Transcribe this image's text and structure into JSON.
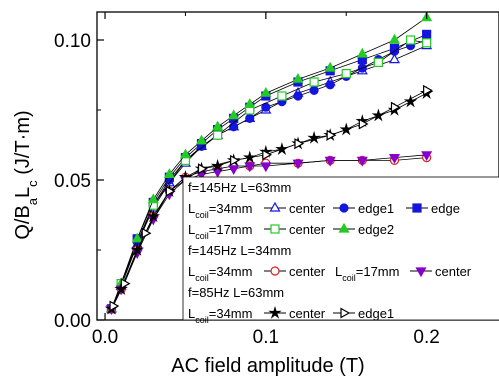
{
  "chart_data": {
    "type": "scatter",
    "xlabel": "AC field amplitude (T)",
    "ylabel": {
      "main": "Q/B",
      "sub_a": "a",
      "mid": "L",
      "sub_b": "c",
      "unit": " (J/T·m)"
    },
    "xlim": [
      -0.005,
      0.245
    ],
    "ylim": [
      0.0,
      0.11
    ],
    "xticks": [
      {
        "v": 0.0,
        "label": "0.0"
      },
      {
        "v": 0.1,
        "label": "0.1"
      },
      {
        "v": 0.2,
        "label": "0.2"
      }
    ],
    "yticks": [
      {
        "v": 0.0,
        "label": "0.00"
      },
      {
        "v": 0.05,
        "label": "0.05"
      },
      {
        "v": 0.1,
        "label": "0.10"
      }
    ],
    "legend_placement": "bottom-right",
    "legend": {
      "group1_title": "f=145Hz L=63mm",
      "group2_title": "f=145Hz L=34mm",
      "group3_title": "f=85Hz L=63mm",
      "lcoil_L": "L",
      "lcoil_sub": "coil",
      "eq34": "=34mm",
      "eq17": "=17mm",
      "center": "center",
      "edge1": "edge1",
      "edge": "edge",
      "edge2": "edge2"
    },
    "series": [
      {
        "key": "s145_63_34_center",
        "color": "#1515e0",
        "marker": "triangle-open",
        "x": [
          0.004,
          0.01,
          0.02,
          0.03,
          0.04,
          0.05,
          0.06,
          0.07,
          0.08,
          0.09,
          0.1,
          0.12,
          0.14,
          0.16,
          0.18,
          0.2
        ],
        "y": [
          0.004,
          0.012,
          0.027,
          0.04,
          0.049,
          0.056,
          0.062,
          0.066,
          0.069,
          0.072,
          0.075,
          0.081,
          0.085,
          0.089,
          0.093,
          0.098
        ]
      },
      {
        "key": "s145_63_34_edge1",
        "color": "#1515e0",
        "marker": "circle-filled",
        "x": [
          0.004,
          0.01,
          0.02,
          0.03,
          0.04,
          0.05,
          0.06,
          0.07,
          0.08,
          0.09,
          0.1,
          0.11,
          0.12,
          0.13,
          0.14,
          0.15,
          0.16,
          0.17,
          0.18,
          0.19,
          0.2
        ],
        "y": [
          0.004,
          0.013,
          0.028,
          0.041,
          0.05,
          0.057,
          0.062,
          0.066,
          0.069,
          0.072,
          0.076,
          0.078,
          0.08,
          0.082,
          0.084,
          0.087,
          0.09,
          0.093,
          0.096,
          0.098,
          0.1
        ]
      },
      {
        "key": "s145_63_34_edge",
        "color": "#1515e0",
        "marker": "square-filled",
        "x": [
          0.004,
          0.01,
          0.02,
          0.03,
          0.04,
          0.05,
          0.06,
          0.07,
          0.08,
          0.09,
          0.1,
          0.12,
          0.14,
          0.16,
          0.18,
          0.2
        ],
        "y": [
          0.004,
          0.013,
          0.029,
          0.042,
          0.051,
          0.058,
          0.063,
          0.068,
          0.072,
          0.076,
          0.08,
          0.085,
          0.089,
          0.093,
          0.097,
          0.102
        ]
      },
      {
        "key": "s145_63_17_center",
        "color": "#22cc22",
        "marker": "square-open",
        "x": [
          0.01,
          0.03,
          0.05,
          0.07,
          0.09,
          0.11,
          0.13,
          0.15,
          0.17,
          0.19,
          0.2
        ],
        "y": [
          0.013,
          0.041,
          0.057,
          0.066,
          0.075,
          0.08,
          0.085,
          0.088,
          0.092,
          0.1,
          0.099
        ]
      },
      {
        "key": "s145_63_17_edge2",
        "color": "#22cc22",
        "marker": "triangle-filled",
        "x": [
          0.004,
          0.01,
          0.02,
          0.03,
          0.04,
          0.05,
          0.06,
          0.07,
          0.08,
          0.09,
          0.1,
          0.12,
          0.14,
          0.16,
          0.18,
          0.2
        ],
        "y": [
          0.004,
          0.013,
          0.029,
          0.043,
          0.052,
          0.059,
          0.064,
          0.069,
          0.073,
          0.077,
          0.081,
          0.086,
          0.09,
          0.095,
          0.1,
          0.108
        ]
      },
      {
        "key": "s145_34_34_center",
        "color": "#e02020",
        "marker": "circle-open",
        "x": [
          0.004,
          0.01,
          0.02,
          0.03,
          0.04,
          0.05,
          0.06,
          0.07,
          0.08,
          0.09,
          0.1,
          0.12,
          0.14,
          0.16,
          0.18,
          0.2
        ],
        "y": [
          0.004,
          0.011,
          0.025,
          0.037,
          0.046,
          0.051,
          0.053,
          0.054,
          0.055,
          0.055,
          0.056,
          0.056,
          0.057,
          0.057,
          0.057,
          0.058
        ]
      },
      {
        "key": "s145_34_17_center",
        "color": "#8800cc",
        "marker": "triangle-down-filled",
        "x": [
          0.004,
          0.01,
          0.02,
          0.03,
          0.04,
          0.05,
          0.06,
          0.07,
          0.08,
          0.09,
          0.1,
          0.12,
          0.14,
          0.16,
          0.18,
          0.2
        ],
        "y": [
          0.004,
          0.011,
          0.024,
          0.036,
          0.045,
          0.05,
          0.052,
          0.053,
          0.054,
          0.055,
          0.055,
          0.056,
          0.057,
          0.057,
          0.058,
          0.059
        ]
      },
      {
        "key": "s85_63_34_center",
        "color": "#000000",
        "marker": "star-filled",
        "x": [
          0.004,
          0.01,
          0.02,
          0.03,
          0.04,
          0.05,
          0.06,
          0.07,
          0.08,
          0.09,
          0.1,
          0.11,
          0.12,
          0.13,
          0.14,
          0.15,
          0.16,
          0.17,
          0.18,
          0.19,
          0.2
        ],
        "y": [
          0.004,
          0.011,
          0.025,
          0.037,
          0.046,
          0.051,
          0.054,
          0.055,
          0.057,
          0.058,
          0.06,
          0.061,
          0.063,
          0.065,
          0.066,
          0.068,
          0.071,
          0.073,
          0.075,
          0.078,
          0.081
        ]
      },
      {
        "key": "s85_63_34_edge1",
        "color": "#000000",
        "marker": "triangle-right-open",
        "x": [
          0.005,
          0.012,
          0.025,
          0.04,
          0.06,
          0.08,
          0.1,
          0.12,
          0.14,
          0.16,
          0.18,
          0.2
        ],
        "y": [
          0.005,
          0.013,
          0.031,
          0.046,
          0.054,
          0.057,
          0.059,
          0.063,
          0.066,
          0.07,
          0.076,
          0.082
        ]
      }
    ]
  }
}
